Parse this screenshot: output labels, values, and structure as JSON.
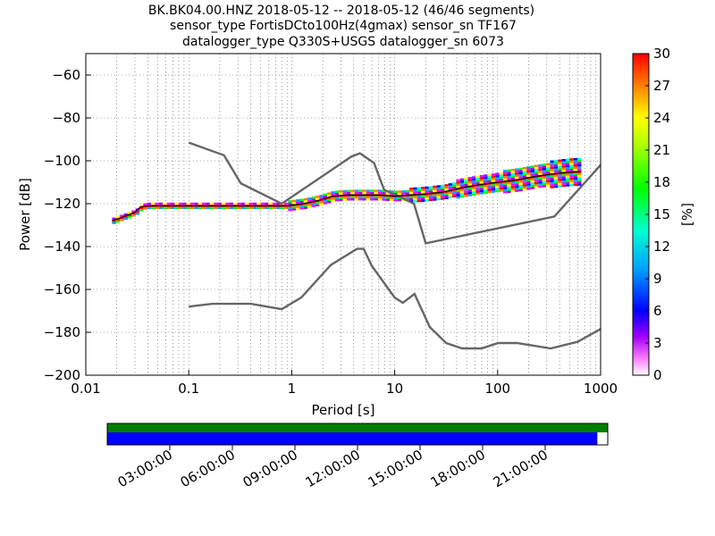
{
  "title": {
    "line1": "BK.BK04.00.HNZ   2018-05-12 -- 2018-05-12  (46/46 segments)",
    "line2": "sensor_type FortisDCto100Hz(4gmax) sensor_sn TF167",
    "line3": "datalogger_type Q330S+USGS datalogger_sn 6073"
  },
  "colors": {
    "model_curves": "#666666",
    "mode_line": "#000000",
    "coverage_top": "#008000",
    "coverage_bottom": "#0000ff"
  },
  "chart_data": [
    {
      "type": "heatmap",
      "subtype": "probabilistic-power-spectral-density",
      "xlabel": "Period [s]",
      "ylabel": "Power [dB]",
      "xscale": "log",
      "xlim": [
        0.01,
        1000
      ],
      "ylim": [
        -200,
        -50
      ],
      "x_tick_labels": [
        "0.01",
        "0.1",
        "1",
        "10",
        "100",
        "1000"
      ],
      "y_tick_labels": [
        "−200",
        "−180",
        "−160",
        "−140",
        "−120",
        "−100",
        "−80",
        "−60"
      ],
      "y_ticks": [
        -200,
        -180,
        -160,
        -140,
        -120,
        -100,
        -80,
        -60
      ],
      "grid": true,
      "colorbar": {
        "label": "[%]",
        "range": [
          0,
          30
        ],
        "ticks": [
          "0",
          "3",
          "6",
          "9",
          "12",
          "15",
          "18",
          "21",
          "24",
          "27",
          "30"
        ]
      },
      "noise_models": [
        {
          "name": "NHNM",
          "x": [
            0.1,
            0.22,
            0.32,
            0.8,
            3.8,
            4.6,
            6.3,
            7.9,
            15.4,
            20,
            354.8,
            10000
          ],
          "y": [
            -91.5,
            -97.4,
            -110.5,
            -120,
            -98,
            -96.5,
            -101,
            -113.5,
            -120,
            -138.5,
            -126,
            -48.5
          ]
        },
        {
          "name": "NLNM",
          "x": [
            0.1,
            0.17,
            0.4,
            0.8,
            1.24,
            2.4,
            4.3,
            5,
            6,
            10,
            12,
            15.6,
            21.9,
            31.6,
            45,
            70,
            101,
            154,
            328,
            600,
            10000
          ],
          "y": [
            -168,
            -166.7,
            -166.7,
            -169.2,
            -163.7,
            -148.6,
            -141.1,
            -141.1,
            -149,
            -163.8,
            -166.2,
            -162.1,
            -177.5,
            -185,
            -187.5,
            -187.5,
            -185,
            -185,
            -187.5,
            -184.4,
            -151.5
          ]
        }
      ],
      "mode_line": {
        "x": [
          0.018,
          0.022,
          0.025,
          0.03,
          0.034,
          0.04,
          0.1,
          0.5,
          0.9,
          1.3,
          1.8,
          2.5,
          3.5,
          5,
          7,
          10,
          14,
          20,
          30,
          45,
          70,
          100,
          150,
          220,
          300,
          450,
          650
        ],
        "y": [
          -128,
          -126.5,
          -125.5,
          -124,
          -121.5,
          -121,
          -121,
          -121,
          -121,
          -120,
          -118.5,
          -116.5,
          -116,
          -116,
          -116,
          -116.5,
          -116,
          -115.5,
          -114.5,
          -112.5,
          -111,
          -110,
          -109,
          -107.5,
          -106.5,
          -105.5,
          -105
        ]
      }
    },
    {
      "type": "coverage-timeline",
      "tick_labels": [
        "03:00:00",
        "06:00:00",
        "09:00:00",
        "12:00:00",
        "15:00:00",
        "18:00:00",
        "21:00:00"
      ],
      "tick_hours": [
        3,
        6,
        9,
        12,
        15,
        18,
        21
      ],
      "range_hours": [
        0,
        24
      ],
      "top_bar_coverage": [
        0,
        24
      ],
      "bottom_bar_coverage": [
        0,
        23.5
      ]
    }
  ]
}
